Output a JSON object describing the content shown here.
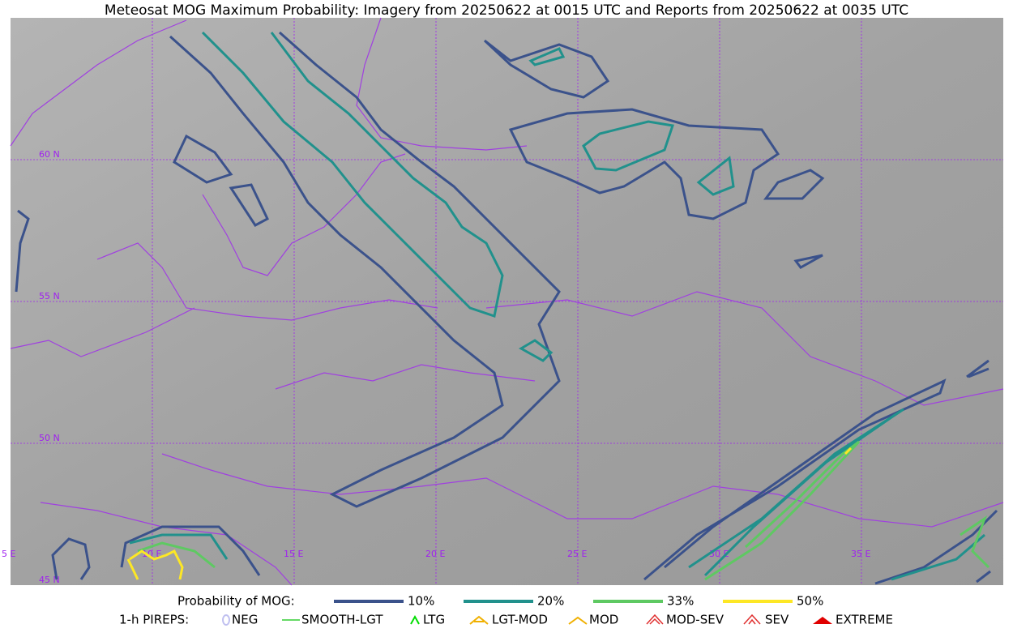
{
  "title": "Meteosat MOG Maximum Probability: Imagery from 20250622 at 0015 UTC and Reports from 20250622 at 0035 UTC",
  "map": {
    "lon_labels": [
      "5 E",
      "10 E",
      "15 E",
      "20 E",
      "25 E",
      "30 E",
      "35 E"
    ],
    "lat_labels": [
      "60 N",
      "55 N",
      "50 N",
      "45 N"
    ]
  },
  "legend": {
    "probability": {
      "label": "Probability of MOG:",
      "items": [
        {
          "label": "10%",
          "color": "#3b528b"
        },
        {
          "label": "20%",
          "color": "#21918c"
        },
        {
          "label": "33%",
          "color": "#5ec962"
        },
        {
          "label": "50%",
          "color": "#fde725"
        }
      ]
    },
    "pireps": {
      "label": "1-h PIREPS:",
      "items": [
        {
          "label": "NEG",
          "color": "#c0c0f0"
        },
        {
          "label": "SMOOTH-LGT",
          "color": "#32cd32"
        },
        {
          "label": "LTG",
          "color": "#00dd00"
        },
        {
          "label": "LGT-MOD",
          "color": "#f0b000"
        },
        {
          "label": "MOD",
          "color": "#f0b000"
        },
        {
          "label": "MOD-SEV",
          "color": "#e03030"
        },
        {
          "label": "SEV",
          "color": "#e03030"
        },
        {
          "label": "EXTREME",
          "color": "#e00000"
        }
      ]
    }
  }
}
